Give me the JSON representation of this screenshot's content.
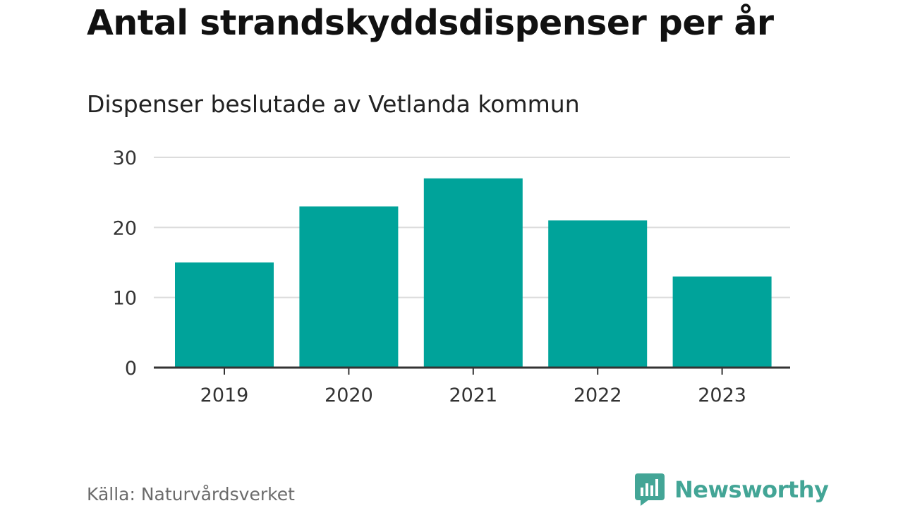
{
  "chart_data": {
    "type": "bar",
    "title": "Antal strandskyddsdispenser per år",
    "subtitle": "Dispenser beslutade av Vetlanda kommun",
    "categories": [
      "2019",
      "2020",
      "2021",
      "2022",
      "2023"
    ],
    "values": [
      15,
      23,
      27,
      21,
      13
    ],
    "xlabel": "",
    "ylabel": "",
    "ylim": [
      0,
      30
    ],
    "yticks": [
      0,
      10,
      20,
      30
    ],
    "grid": true,
    "bar_color": "#00a39a",
    "source": "Källa: Naturvårdsverket"
  },
  "branding": {
    "logo_text": "Newsworthy",
    "logo_icon": "bar-chart-speech-bubble-icon",
    "logo_color": "#43a596"
  }
}
